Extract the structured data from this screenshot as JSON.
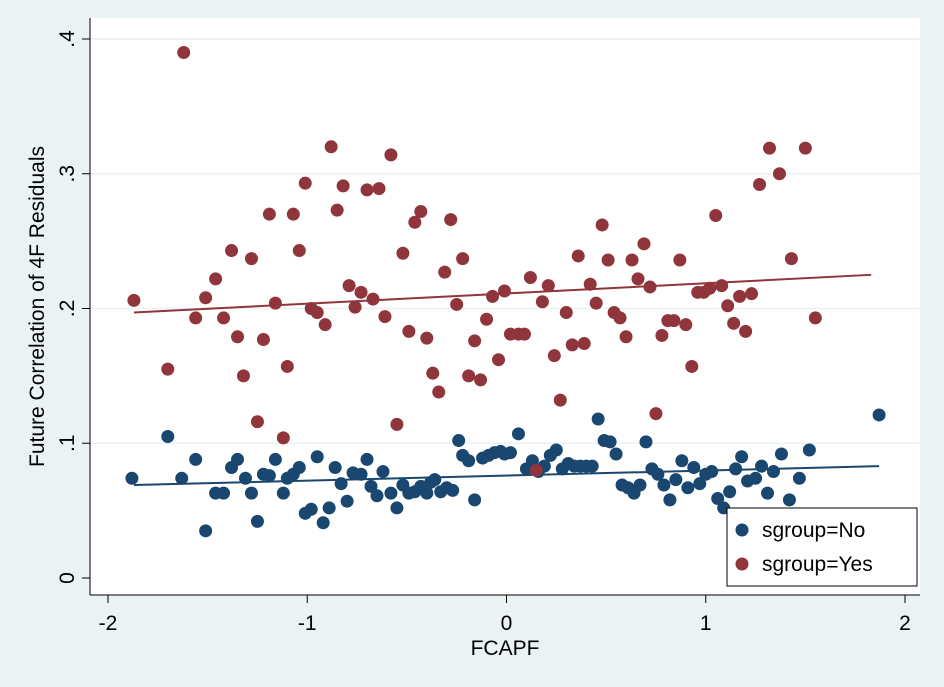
{
  "chart_data": {
    "type": "scatter",
    "xlabel": "FCAPF",
    "ylabel": "Future Correlation of 4F Residuals",
    "xlim": [
      -2,
      2
    ],
    "ylim": [
      0,
      0.4
    ],
    "xticks": [
      -2,
      -1,
      0,
      1,
      2
    ],
    "xtick_labels": [
      "-2",
      "-1",
      "0",
      "1",
      "2"
    ],
    "yticks": [
      0,
      0.1,
      0.2,
      0.3,
      0.4
    ],
    "ytick_labels": [
      "0",
      ".1",
      ".2",
      ".3",
      ".4"
    ],
    "grid": "horizontal",
    "legend_position": "bottom-right",
    "colors": {
      "No": "#1a476f",
      "Yes": "#90353b",
      "background": "#eaf2f3",
      "plot_background": "#ffffff",
      "grid": "#eaf2f3"
    },
    "series": [
      {
        "name": "sgroup=No",
        "color": "#1a476f",
        "fit": [
          [
            -1.87,
            0.069
          ],
          [
            1.87,
            0.083
          ]
        ],
        "points": [
          [
            -1.88,
            0.074
          ],
          [
            -1.7,
            0.105
          ],
          [
            -1.63,
            0.074
          ],
          [
            -1.56,
            0.088
          ],
          [
            -1.51,
            0.035
          ],
          [
            -1.46,
            0.063
          ],
          [
            -1.42,
            0.063
          ],
          [
            -1.38,
            0.082
          ],
          [
            -1.35,
            0.088
          ],
          [
            -1.31,
            0.074
          ],
          [
            -1.28,
            0.063
          ],
          [
            -1.25,
            0.042
          ],
          [
            -1.22,
            0.077
          ],
          [
            -1.19,
            0.076
          ],
          [
            -1.16,
            0.088
          ],
          [
            -1.12,
            0.063
          ],
          [
            -1.1,
            0.074
          ],
          [
            -1.07,
            0.077
          ],
          [
            -1.04,
            0.082
          ],
          [
            -1.01,
            0.048
          ],
          [
            -0.98,
            0.051
          ],
          [
            -0.95,
            0.09
          ],
          [
            -0.92,
            0.041
          ],
          [
            -0.89,
            0.052
          ],
          [
            -0.86,
            0.082
          ],
          [
            -0.83,
            0.07
          ],
          [
            -0.8,
            0.057
          ],
          [
            -0.77,
            0.078
          ],
          [
            -0.73,
            0.077
          ],
          [
            -0.7,
            0.088
          ],
          [
            -0.68,
            0.068
          ],
          [
            -0.65,
            0.061
          ],
          [
            -0.62,
            0.079
          ],
          [
            -0.58,
            0.063
          ],
          [
            -0.55,
            0.052
          ],
          [
            -0.52,
            0.069
          ],
          [
            -0.49,
            0.063
          ],
          [
            -0.46,
            0.064
          ],
          [
            -0.43,
            0.068
          ],
          [
            -0.4,
            0.063
          ],
          [
            -0.38,
            0.071
          ],
          [
            -0.36,
            0.073
          ],
          [
            -0.33,
            0.064
          ],
          [
            -0.3,
            0.067
          ],
          [
            -0.27,
            0.065
          ],
          [
            -0.24,
            0.102
          ],
          [
            -0.22,
            0.091
          ],
          [
            -0.19,
            0.087
          ],
          [
            -0.16,
            0.058
          ],
          [
            -0.12,
            0.089
          ],
          [
            -0.09,
            0.091
          ],
          [
            -0.06,
            0.093
          ],
          [
            -0.03,
            0.094
          ],
          [
            -0.01,
            0.092
          ],
          [
            0.02,
            0.093
          ],
          [
            0.06,
            0.107
          ],
          [
            0.1,
            0.081
          ],
          [
            0.13,
            0.087
          ],
          [
            0.16,
            0.079
          ],
          [
            0.19,
            0.083
          ],
          [
            0.22,
            0.091
          ],
          [
            0.25,
            0.095
          ],
          [
            0.28,
            0.081
          ],
          [
            0.31,
            0.085
          ],
          [
            0.34,
            0.083
          ],
          [
            0.37,
            0.083
          ],
          [
            0.4,
            0.083
          ],
          [
            0.43,
            0.083
          ],
          [
            0.46,
            0.118
          ],
          [
            0.49,
            0.102
          ],
          [
            0.52,
            0.101
          ],
          [
            0.55,
            0.092
          ],
          [
            0.58,
            0.069
          ],
          [
            0.61,
            0.067
          ],
          [
            0.64,
            0.063
          ],
          [
            0.67,
            0.069
          ],
          [
            0.7,
            0.101
          ],
          [
            0.73,
            0.081
          ],
          [
            0.76,
            0.077
          ],
          [
            0.79,
            0.069
          ],
          [
            0.82,
            0.058
          ],
          [
            0.85,
            0.073
          ],
          [
            0.88,
            0.087
          ],
          [
            0.91,
            0.067
          ],
          [
            0.94,
            0.082
          ],
          [
            0.97,
            0.07
          ],
          [
            1.0,
            0.077
          ],
          [
            1.03,
            0.079
          ],
          [
            1.06,
            0.059
          ],
          [
            1.09,
            0.052
          ],
          [
            1.12,
            0.064
          ],
          [
            1.15,
            0.081
          ],
          [
            1.18,
            0.09
          ],
          [
            1.21,
            0.072
          ],
          [
            1.25,
            0.074
          ],
          [
            1.28,
            0.083
          ],
          [
            1.31,
            0.063
          ],
          [
            1.34,
            0.079
          ],
          [
            1.38,
            0.092
          ],
          [
            1.42,
            0.058
          ],
          [
            1.47,
            0.074
          ],
          [
            1.52,
            0.095
          ],
          [
            1.87,
            0.121
          ]
        ]
      },
      {
        "name": "sgroup=Yes",
        "color": "#90353b",
        "fit": [
          [
            -1.87,
            0.197
          ],
          [
            1.83,
            0.225
          ]
        ],
        "points": [
          [
            -1.87,
            0.206
          ],
          [
            -1.7,
            0.155
          ],
          [
            -1.62,
            0.39
          ],
          [
            -1.56,
            0.193
          ],
          [
            -1.51,
            0.208
          ],
          [
            -1.46,
            0.222
          ],
          [
            -1.42,
            0.193
          ],
          [
            -1.38,
            0.243
          ],
          [
            -1.35,
            0.179
          ],
          [
            -1.32,
            0.15
          ],
          [
            -1.28,
            0.237
          ],
          [
            -1.25,
            0.116
          ],
          [
            -1.22,
            0.177
          ],
          [
            -1.19,
            0.27
          ],
          [
            -1.16,
            0.204
          ],
          [
            -1.12,
            0.104
          ],
          [
            -1.1,
            0.157
          ],
          [
            -1.07,
            0.27
          ],
          [
            -1.04,
            0.243
          ],
          [
            -1.01,
            0.293
          ],
          [
            -0.98,
            0.2
          ],
          [
            -0.95,
            0.197
          ],
          [
            -0.91,
            0.188
          ],
          [
            -0.88,
            0.32
          ],
          [
            -0.85,
            0.273
          ],
          [
            -0.82,
            0.291
          ],
          [
            -0.79,
            0.217
          ],
          [
            -0.76,
            0.201
          ],
          [
            -0.73,
            0.212
          ],
          [
            -0.7,
            0.288
          ],
          [
            -0.67,
            0.207
          ],
          [
            -0.64,
            0.289
          ],
          [
            -0.61,
            0.194
          ],
          [
            -0.58,
            0.314
          ],
          [
            -0.55,
            0.114
          ],
          [
            -0.52,
            0.241
          ],
          [
            -0.49,
            0.183
          ],
          [
            -0.46,
            0.264
          ],
          [
            -0.43,
            0.272
          ],
          [
            -0.4,
            0.178
          ],
          [
            -0.37,
            0.152
          ],
          [
            -0.34,
            0.138
          ],
          [
            -0.31,
            0.227
          ],
          [
            -0.28,
            0.266
          ],
          [
            -0.25,
            0.203
          ],
          [
            -0.22,
            0.237
          ],
          [
            -0.19,
            0.15
          ],
          [
            -0.16,
            0.176
          ],
          [
            -0.13,
            0.147
          ],
          [
            -0.1,
            0.192
          ],
          [
            -0.07,
            0.209
          ],
          [
            -0.04,
            0.162
          ],
          [
            -0.01,
            0.213
          ],
          [
            0.02,
            0.181
          ],
          [
            0.06,
            0.181
          ],
          [
            0.09,
            0.181
          ],
          [
            0.12,
            0.223
          ],
          [
            0.15,
            0.08
          ],
          [
            0.18,
            0.205
          ],
          [
            0.21,
            0.217
          ],
          [
            0.24,
            0.165
          ],
          [
            0.27,
            0.132
          ],
          [
            0.3,
            0.197
          ],
          [
            0.33,
            0.173
          ],
          [
            0.36,
            0.239
          ],
          [
            0.39,
            0.174
          ],
          [
            0.42,
            0.218
          ],
          [
            0.45,
            0.204
          ],
          [
            0.48,
            0.262
          ],
          [
            0.51,
            0.236
          ],
          [
            0.54,
            0.197
          ],
          [
            0.57,
            0.193
          ],
          [
            0.6,
            0.179
          ],
          [
            0.63,
            0.236
          ],
          [
            0.66,
            0.222
          ],
          [
            0.69,
            0.248
          ],
          [
            0.72,
            0.216
          ],
          [
            0.75,
            0.122
          ],
          [
            0.78,
            0.18
          ],
          [
            0.81,
            0.191
          ],
          [
            0.84,
            0.191
          ],
          [
            0.87,
            0.236
          ],
          [
            0.9,
            0.188
          ],
          [
            0.93,
            0.157
          ],
          [
            0.96,
            0.212
          ],
          [
            0.99,
            0.212
          ],
          [
            1.02,
            0.215
          ],
          [
            1.05,
            0.269
          ],
          [
            1.08,
            0.217
          ],
          [
            1.11,
            0.202
          ],
          [
            1.14,
            0.189
          ],
          [
            1.17,
            0.209
          ],
          [
            1.2,
            0.183
          ],
          [
            1.23,
            0.211
          ],
          [
            1.27,
            0.292
          ],
          [
            1.32,
            0.319
          ],
          [
            1.37,
            0.3
          ],
          [
            1.43,
            0.237
          ],
          [
            1.5,
            0.319
          ],
          [
            1.55,
            0.193
          ]
        ]
      }
    ],
    "legend": [
      "sgroup=No",
      "sgroup=Yes"
    ]
  }
}
